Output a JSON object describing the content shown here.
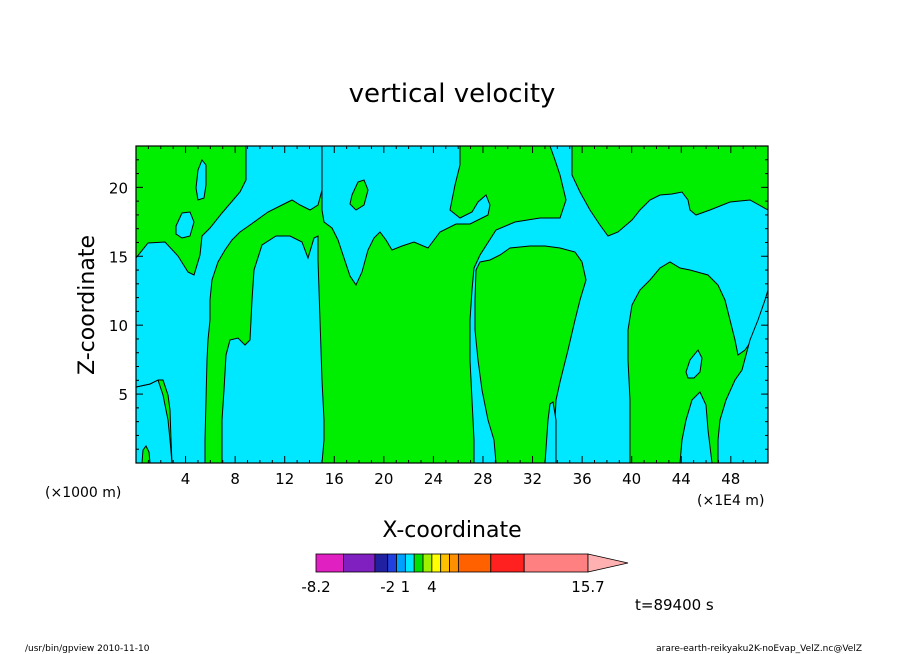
{
  "chart_data": {
    "type": "heatmap",
    "title": "vertical velocity",
    "xlabel": "X-coordinate",
    "ylabel": "Z-coordinate",
    "x_unit_label": "(×1000 m)",
    "x_unit_label_right": "(×1E4 m)",
    "xlim": [
      0,
      51
    ],
    "ylim": [
      0,
      23
    ],
    "x_ticks": [
      4,
      8,
      12,
      16,
      20,
      24,
      28,
      32,
      36,
      40,
      44,
      48
    ],
    "y_ticks": [
      5,
      10,
      15,
      20
    ],
    "time_label": "t=89400 s",
    "colorbar": {
      "labels": [
        {
          "text": "-8.2",
          "value": -8.2
        },
        {
          "text": "-2",
          "value": -2
        },
        {
          "text": "1",
          "value": 1
        },
        {
          "text": "4",
          "value": 4
        },
        {
          "text": "15.7",
          "value": 15.7
        }
      ],
      "colors": [
        "#e020c0",
        "#8020c0",
        "#2020a0",
        "#2040e0",
        "#00a0ff",
        "#00e8ff",
        "#00e000",
        "#a0f000",
        "#ffff00",
        "#ffc000",
        "#ff9000",
        "#ff6000",
        "#ff2020",
        "#ff8080",
        "#ffb0b0"
      ]
    },
    "fill_colors": {
      "negative": "#00e8ff",
      "positive": "#00ee00",
      "contour": "#000000"
    }
  },
  "footer": {
    "left": "/usr/bin/gpview   2010-11-10",
    "right": "arare-earth-reikyaku2K-noEvap_VelZ.nc@VelZ"
  }
}
